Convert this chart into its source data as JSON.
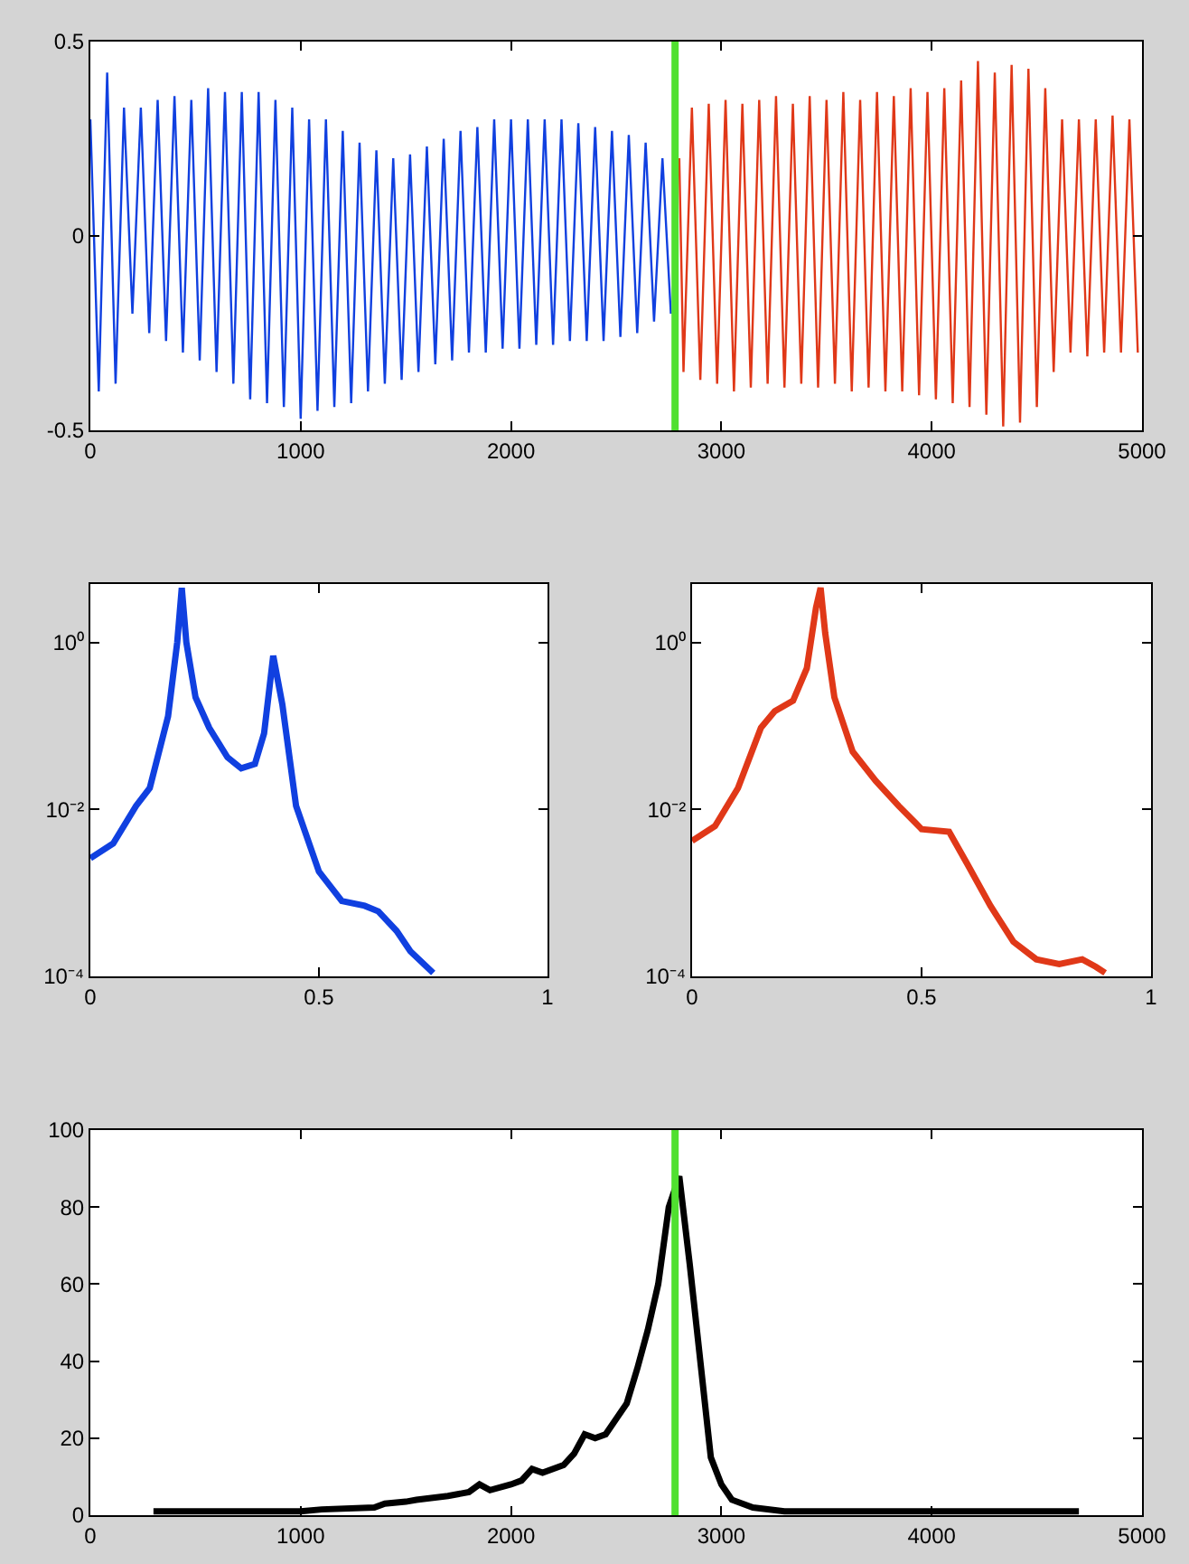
{
  "chart_data": [
    {
      "type": "line",
      "xlim": [
        0,
        5000
      ],
      "xticks": [
        0,
        1000,
        2000,
        3000,
        4000,
        5000
      ],
      "ylim": [
        -0.5,
        0.5
      ],
      "yticks": [
        -0.5,
        0,
        0.5
      ],
      "ref_lines": [
        {
          "axis": "x",
          "value": 2780,
          "color": "#50e030"
        }
      ],
      "series": [
        {
          "color": "#1040e0",
          "x": [
            0,
            40,
            80,
            120,
            160,
            200,
            240,
            280,
            320,
            360,
            400,
            440,
            480,
            520,
            560,
            600,
            640,
            680,
            720,
            760,
            800,
            840,
            880,
            920,
            960,
            1000,
            1040,
            1080,
            1120,
            1160,
            1200,
            1240,
            1280,
            1320,
            1360,
            1400,
            1440,
            1480,
            1520,
            1560,
            1600,
            1640,
            1680,
            1720,
            1760,
            1800,
            1840,
            1880,
            1920,
            1960,
            2000,
            2040,
            2080,
            2120,
            2160,
            2200,
            2240,
            2280,
            2320,
            2360,
            2400,
            2440,
            2480,
            2520,
            2560,
            2600,
            2640,
            2680,
            2720,
            2760
          ],
          "values": [
            0.3,
            -0.4,
            0.42,
            -0.38,
            0.33,
            -0.2,
            0.33,
            -0.25,
            0.35,
            -0.27,
            0.36,
            -0.3,
            0.35,
            -0.32,
            0.38,
            -0.35,
            0.37,
            -0.38,
            0.37,
            -0.42,
            0.37,
            -0.43,
            0.35,
            -0.44,
            0.33,
            -0.47,
            0.3,
            -0.45,
            0.3,
            -0.44,
            0.27,
            -0.43,
            0.24,
            -0.4,
            0.22,
            -0.38,
            0.2,
            -0.37,
            0.21,
            -0.35,
            0.23,
            -0.33,
            0.25,
            -0.32,
            0.27,
            -0.3,
            0.28,
            -0.3,
            0.3,
            -0.29,
            0.3,
            -0.29,
            0.3,
            -0.28,
            0.3,
            -0.28,
            0.3,
            -0.27,
            0.29,
            -0.27,
            0.28,
            -0.27,
            0.27,
            -0.26,
            0.26,
            -0.25,
            0.24,
            -0.22,
            0.2,
            -0.2
          ]
        },
        {
          "color": "#e03818",
          "x": [
            2800,
            2820,
            2860,
            2900,
            2940,
            2980,
            3020,
            3060,
            3100,
            3140,
            3180,
            3220,
            3260,
            3300,
            3340,
            3380,
            3420,
            3460,
            3500,
            3540,
            3580,
            3620,
            3660,
            3700,
            3740,
            3780,
            3820,
            3860,
            3900,
            3940,
            3980,
            4020,
            4060,
            4100,
            4140,
            4180,
            4220,
            4260,
            4300,
            4340,
            4380,
            4420,
            4460,
            4500,
            4540,
            4580,
            4620,
            4660,
            4700,
            4740,
            4780,
            4820,
            4860,
            4900,
            4940,
            4980
          ],
          "values": [
            0.2,
            -0.35,
            0.33,
            -0.37,
            0.34,
            -0.38,
            0.35,
            -0.4,
            0.34,
            -0.39,
            0.35,
            -0.38,
            0.36,
            -0.39,
            0.34,
            -0.38,
            0.36,
            -0.39,
            0.35,
            -0.38,
            0.37,
            -0.4,
            0.35,
            -0.39,
            0.37,
            -0.4,
            0.36,
            -0.4,
            0.38,
            -0.41,
            0.37,
            -0.42,
            0.38,
            -0.43,
            0.4,
            -0.44,
            0.45,
            -0.46,
            0.42,
            -0.49,
            0.44,
            -0.48,
            0.43,
            -0.44,
            0.38,
            -0.35,
            0.3,
            -0.3,
            0.3,
            -0.31,
            0.3,
            -0.3,
            0.31,
            -0.3,
            0.3,
            -0.3
          ]
        }
      ]
    },
    {
      "type": "line",
      "log": true,
      "xlim": [
        0,
        1
      ],
      "xticks": [
        0,
        0.5,
        1
      ],
      "ylim": [
        0.0001,
        5
      ],
      "yticks": [
        {
          "value": 0.0001,
          "label": "10⁻⁴"
        },
        {
          "value": 0.01,
          "label": "10⁻²"
        },
        {
          "value": 1,
          "label": "10⁰"
        }
      ],
      "series": [
        {
          "color": "#1040e0",
          "x": [
            0,
            0.05,
            0.1,
            0.13,
            0.17,
            0.19,
            0.2,
            0.21,
            0.23,
            0.26,
            0.3,
            0.33,
            0.36,
            0.38,
            0.4,
            0.42,
            0.45,
            0.5,
            0.55,
            0.6,
            0.63,
            0.67,
            0.7,
            0.75
          ],
          "values": [
            0.0026,
            0.0039,
            0.011,
            0.018,
            0.13,
            1.0,
            4.5,
            1.0,
            0.22,
            0.095,
            0.042,
            0.031,
            0.035,
            0.081,
            0.69,
            0.18,
            0.011,
            0.0018,
            0.0008,
            0.0007,
            0.0006,
            0.00035,
            0.0002,
            0.00011
          ]
        }
      ]
    },
    {
      "type": "line",
      "log": true,
      "xlim": [
        0,
        1
      ],
      "xticks": [
        0,
        0.5,
        1
      ],
      "ylim": [
        0.0001,
        5
      ],
      "yticks": [
        {
          "value": 0.0001,
          "label": "10⁻⁴"
        },
        {
          "value": 0.01,
          "label": "10⁻²"
        },
        {
          "value": 1,
          "label": "10⁰"
        }
      ],
      "series": [
        {
          "color": "#e03818",
          "x": [
            0,
            0.05,
            0.1,
            0.15,
            0.18,
            0.22,
            0.25,
            0.27,
            0.28,
            0.29,
            0.31,
            0.35,
            0.4,
            0.45,
            0.5,
            0.56,
            0.6,
            0.65,
            0.7,
            0.75,
            0.8,
            0.85,
            0.88,
            0.9
          ],
          "values": [
            0.0042,
            0.0063,
            0.018,
            0.095,
            0.15,
            0.2,
            0.49,
            2.6,
            4.5,
            1.3,
            0.22,
            0.049,
            0.022,
            0.011,
            0.0058,
            0.0054,
            0.0022,
            0.0007,
            0.00026,
            0.00016,
            0.00014,
            0.00016,
            0.00013,
            0.00011
          ]
        }
      ]
    },
    {
      "type": "line",
      "xlim": [
        0,
        5000
      ],
      "xticks": [
        0,
        1000,
        2000,
        3000,
        4000,
        5000
      ],
      "ylim": [
        0,
        100
      ],
      "yticks": [
        0,
        20,
        40,
        60,
        80,
        100
      ],
      "ref_lines": [
        {
          "axis": "x",
          "value": 2780,
          "color": "#50e030"
        }
      ],
      "series": [
        {
          "color": "#000000",
          "x": [
            300,
            1000,
            1100,
            1350,
            1400,
            1500,
            1550,
            1700,
            1800,
            1850,
            1900,
            2000,
            2050,
            2100,
            2150,
            2250,
            2300,
            2350,
            2400,
            2450,
            2500,
            2550,
            2600,
            2650,
            2700,
            2750,
            2800,
            2850,
            2900,
            2950,
            3000,
            3050,
            3150,
            3300,
            4700
          ],
          "values": [
            1,
            1,
            1.5,
            2,
            3,
            3.5,
            4,
            5,
            6,
            8,
            6.5,
            8,
            9,
            12,
            11,
            13,
            16,
            21,
            20,
            21,
            25,
            29,
            38,
            48,
            60,
            80,
            88,
            65,
            40,
            15,
            8,
            4,
            2,
            1,
            1
          ]
        }
      ]
    }
  ]
}
